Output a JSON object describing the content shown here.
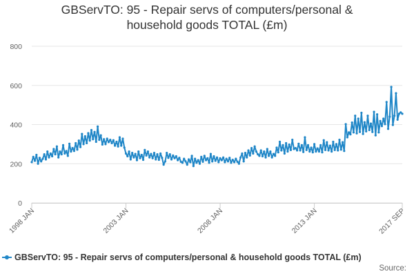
{
  "chart_data": {
    "type": "line",
    "title_lines": [
      "GBServTO: 95 - Repair servs of computers/personal &",
      "household goods TOTAL (£m)"
    ],
    "xlabel": "",
    "ylabel": "",
    "ylim": [
      0,
      800
    ],
    "y_ticks": [
      "0",
      "200",
      "400",
      "600",
      "800"
    ],
    "x_tick_labels": [
      "1998 JAN",
      "2003 JAN",
      "2008 JAN",
      "2013 JAN",
      "2017 SEP"
    ],
    "x_range": [
      "1998-01",
      "2017-09"
    ],
    "grid": true,
    "legend_position": "bottom",
    "series": [
      {
        "name": "GBServTO: 95 - Repair servs of computers/personal & household goods TOTAL (£m)",
        "color": "#1f86c7",
        "frequency": "monthly",
        "start": "1998-01",
        "values": [
          208,
          235,
          215,
          245,
          200,
          230,
          212,
          225,
          248,
          222,
          262,
          232,
          252,
          238,
          275,
          248,
          288,
          232,
          262,
          248,
          295,
          252,
          265,
          240,
          302,
          262,
          280,
          265,
          305,
          272,
          318,
          285,
          352,
          300,
          340,
          305,
          356,
          318,
          372,
          325,
          362,
          312,
          390,
          322,
          345,
          298,
          325,
          300,
          328,
          310,
          322,
          305,
          320,
          292,
          312,
          288,
          335,
          292,
          328,
          282,
          252,
          238,
          262,
          222,
          255,
          232,
          250,
          218,
          262,
          228,
          245,
          220,
          270,
          242,
          262,
          232,
          250,
          228,
          255,
          222,
          248,
          220,
          252,
          230,
          195,
          212,
          255,
          230,
          248,
          222,
          242,
          228,
          238,
          218,
          230,
          210,
          205,
          225,
          212,
          195,
          222,
          208,
          240,
          188,
          225,
          205,
          218,
          200,
          235,
          210,
          240,
          218,
          228,
          205,
          250,
          212,
          238,
          215,
          232,
          208,
          228,
          218,
          232,
          208,
          225,
          212,
          230,
          205,
          220,
          208,
          225,
          210,
          200,
          232,
          252,
          212,
          255,
          232,
          268,
          242,
          280,
          252,
          288,
          262,
          248,
          240,
          268,
          238,
          262,
          232,
          275,
          240,
          262,
          232,
          250,
          240,
          282,
          258,
          312,
          268,
          295,
          252,
          305,
          262,
          298,
          270,
          322,
          275,
          280,
          268,
          302,
          268,
          295,
          260,
          335,
          270,
          295,
          262,
          282,
          258,
          300,
          262,
          278,
          262,
          295,
          258,
          320,
          270,
          310,
          268,
          292,
          262,
          312,
          270,
          300,
          268,
          322,
          272,
          310,
          265,
          402,
          335,
          360,
          350,
          410,
          360,
          445,
          355,
          430,
          362,
          460,
          352,
          412,
          365,
          445,
          372,
          405,
          362,
          465,
          345,
          452,
          360,
          418,
          392,
          430,
          402,
          515,
          378,
          440,
          592,
          398,
          445,
          560,
          425,
          455,
          462,
          455
        ]
      }
    ],
    "legend_label": "GBServTO: 95 - Repair servs of computers/personal & household goods TOTAL (£m)",
    "source_label": "Source:"
  }
}
